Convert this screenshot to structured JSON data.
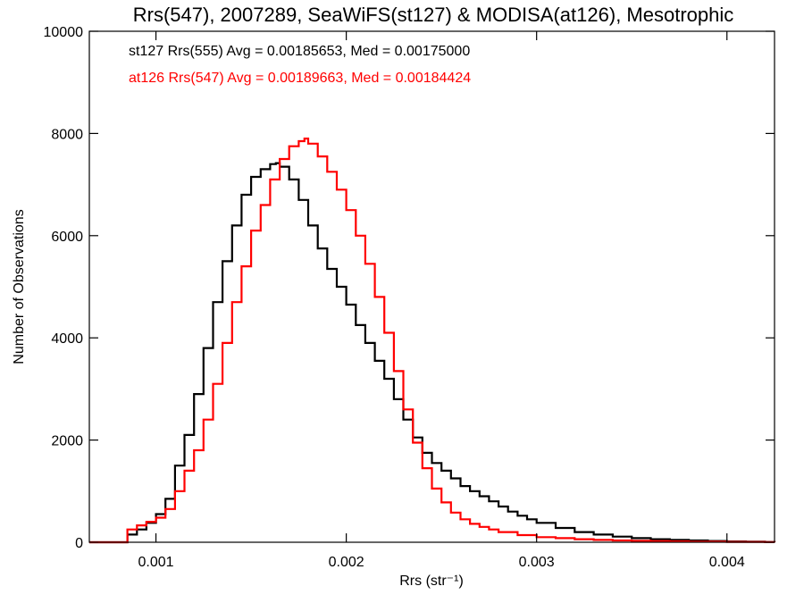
{
  "chart_data": {
    "type": "line",
    "title": "Rrs(547), 2007289, SeaWiFS(st127) & MODISA(at126), Mesotrophic",
    "xlabel": "Rrs (str⁻¹)",
    "ylabel": "Number of Observations",
    "xlim": [
      0.00065,
      0.00425
    ],
    "ylim": [
      0,
      10000
    ],
    "xticks": [
      0.001,
      0.002,
      0.003,
      0.004
    ],
    "xtick_labels": [
      "0.001",
      "0.002",
      "0.003",
      "0.004"
    ],
    "yticks": [
      0,
      2000,
      4000,
      6000,
      8000,
      10000
    ],
    "ytick_labels": [
      "0",
      "2000",
      "4000",
      "6000",
      "8000",
      "10000"
    ],
    "grid": false,
    "legend_position": "top-left",
    "series": [
      {
        "name": "st127 Rrs(555) Avg = 0.00185653, Med = 0.00175000",
        "color": "#000000",
        "x": [
          0.00065,
          0.0007,
          0.00075,
          0.0008,
          0.00085,
          0.0009,
          0.00095,
          0.001,
          0.00105,
          0.0011,
          0.00115,
          0.0012,
          0.00125,
          0.0013,
          0.00135,
          0.0014,
          0.00145,
          0.0015,
          0.00155,
          0.0016,
          0.00163,
          0.00165,
          0.0017,
          0.00175,
          0.0018,
          0.00185,
          0.0019,
          0.00195,
          0.002,
          0.00205,
          0.0021,
          0.00215,
          0.0022,
          0.00225,
          0.0023,
          0.00235,
          0.0024,
          0.00245,
          0.0025,
          0.00255,
          0.0026,
          0.00265,
          0.0027,
          0.00275,
          0.0028,
          0.00285,
          0.0029,
          0.00295,
          0.003,
          0.0031,
          0.0032,
          0.0033,
          0.0034,
          0.0035,
          0.0036,
          0.0037,
          0.0038,
          0.0039,
          0.004,
          0.0041,
          0.0042,
          0.00425
        ],
        "values": [
          0,
          0,
          0,
          0,
          150,
          250,
          380,
          550,
          850,
          1500,
          2100,
          2900,
          3800,
          4700,
          5500,
          6200,
          6800,
          7150,
          7300,
          7400,
          7420,
          7350,
          7100,
          6700,
          6200,
          5750,
          5350,
          5000,
          4650,
          4250,
          3900,
          3550,
          3200,
          2800,
          2400,
          2050,
          1750,
          1550,
          1400,
          1250,
          1100,
          1000,
          900,
          800,
          700,
          600,
          520,
          450,
          380,
          280,
          200,
          150,
          110,
          80,
          60,
          45,
          35,
          25,
          15,
          10,
          5,
          0
        ]
      },
      {
        "name": "at126 Rrs(547) Avg = 0.00189663, Med = 0.00184424",
        "color": "#ff0000",
        "x": [
          0.00065,
          0.0007,
          0.00075,
          0.0008,
          0.00085,
          0.0009,
          0.00095,
          0.001,
          0.00105,
          0.0011,
          0.00115,
          0.0012,
          0.00125,
          0.0013,
          0.00135,
          0.0014,
          0.00145,
          0.0015,
          0.00155,
          0.0016,
          0.00165,
          0.0017,
          0.00175,
          0.00178,
          0.0018,
          0.00185,
          0.0019,
          0.00195,
          0.002,
          0.00205,
          0.0021,
          0.00215,
          0.0022,
          0.00225,
          0.0023,
          0.00235,
          0.0024,
          0.00245,
          0.0025,
          0.00255,
          0.0026,
          0.00265,
          0.0027,
          0.00275,
          0.0028,
          0.0029,
          0.003,
          0.0031,
          0.0032,
          0.0033,
          0.0034,
          0.0035,
          0.0036,
          0.0037,
          0.0038,
          0.0039,
          0.004,
          0.0041,
          0.0042,
          0.00425
        ],
        "values": [
          0,
          0,
          0,
          0,
          250,
          330,
          400,
          480,
          650,
          1000,
          1400,
          1800,
          2400,
          3100,
          3900,
          4700,
          5400,
          6100,
          6600,
          7100,
          7500,
          7750,
          7850,
          7900,
          7800,
          7550,
          7250,
          6900,
          6500,
          6000,
          5450,
          4800,
          4100,
          3350,
          2600,
          1950,
          1450,
          1050,
          780,
          580,
          450,
          360,
          300,
          250,
          200,
          140,
          100,
          80,
          60,
          45,
          35,
          28,
          22,
          17,
          13,
          10,
          7,
          5,
          3,
          0
        ]
      }
    ]
  }
}
